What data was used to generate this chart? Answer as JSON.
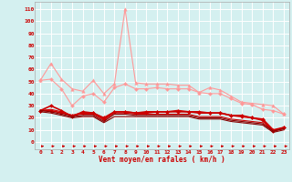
{
  "x": [
    0,
    1,
    2,
    3,
    4,
    5,
    6,
    7,
    8,
    9,
    10,
    11,
    12,
    13,
    14,
    15,
    16,
    17,
    18,
    19,
    20,
    21,
    22,
    23
  ],
  "series": [
    {
      "color": "#ff9999",
      "linewidth": 0.8,
      "marker": "^",
      "markersize": 2.5,
      "values": [
        51,
        65,
        52,
        44,
        42,
        51,
        40,
        48,
        110,
        49,
        48,
        48,
        48,
        47,
        47,
        41,
        45,
        43,
        38,
        33,
        32,
        31,
        30,
        23
      ]
    },
    {
      "color": "#ff9999",
      "linewidth": 0.8,
      "marker": "D",
      "markersize": 2.0,
      "values": [
        51,
        52,
        44,
        30,
        38,
        40,
        33,
        45,
        48,
        44,
        44,
        45,
        44,
        44,
        44,
        41,
        40,
        40,
        36,
        32,
        31,
        27,
        26,
        23
      ]
    },
    {
      "color": "#cc0000",
      "linewidth": 1.2,
      "marker": "D",
      "markersize": 2.0,
      "values": [
        26,
        30,
        26,
        21,
        25,
        24,
        20,
        25,
        25,
        24,
        25,
        25,
        25,
        26,
        25,
        25,
        24,
        24,
        22,
        22,
        20,
        19,
        10,
        12
      ]
    },
    {
      "color": "#cc0000",
      "linewidth": 1.2,
      "marker": "D",
      "markersize": 2.0,
      "values": [
        26,
        26,
        24,
        22,
        24,
        24,
        19,
        25,
        25,
        24,
        24,
        25,
        25,
        25,
        25,
        24,
        24,
        24,
        22,
        21,
        20,
        18,
        9,
        12
      ]
    },
    {
      "color": "#cc0000",
      "linewidth": 0.8,
      "marker": null,
      "markersize": 0,
      "values": [
        26,
        27,
        25,
        22,
        23,
        23,
        18,
        24,
        24,
        23,
        23,
        23,
        23,
        23,
        23,
        21,
        21,
        21,
        19,
        18,
        17,
        16,
        9,
        11
      ]
    },
    {
      "color": "#880000",
      "linewidth": 0.8,
      "marker": null,
      "markersize": 0,
      "values": [
        26,
        25,
        23,
        21,
        22,
        22,
        17,
        23,
        23,
        22,
        22,
        22,
        22,
        22,
        22,
        20,
        20,
        20,
        18,
        17,
        16,
        15,
        9,
        11
      ]
    },
    {
      "color": "#880000",
      "linewidth": 0.8,
      "marker": null,
      "markersize": 0,
      "values": [
        25,
        24,
        22,
        20,
        21,
        21,
        16,
        21,
        21,
        21,
        21,
        21,
        21,
        21,
        21,
        19,
        19,
        19,
        17,
        16,
        15,
        14,
        8,
        10
      ]
    }
  ],
  "xlabel": "Vent moyen/en rafales ( km/h )",
  "ylabel_ticks": [
    0,
    10,
    20,
    30,
    40,
    50,
    60,
    70,
    80,
    90,
    100,
    110
  ],
  "xlim": [
    -0.5,
    23.5
  ],
  "ylim": [
    -6,
    116
  ],
  "bg_color": "#d4f0f0",
  "grid_color": "#ffffff",
  "tick_color": "#cc0000",
  "label_color": "#cc0000",
  "arrow_color": "#cc0000",
  "spine_color": "#aaaaaa"
}
